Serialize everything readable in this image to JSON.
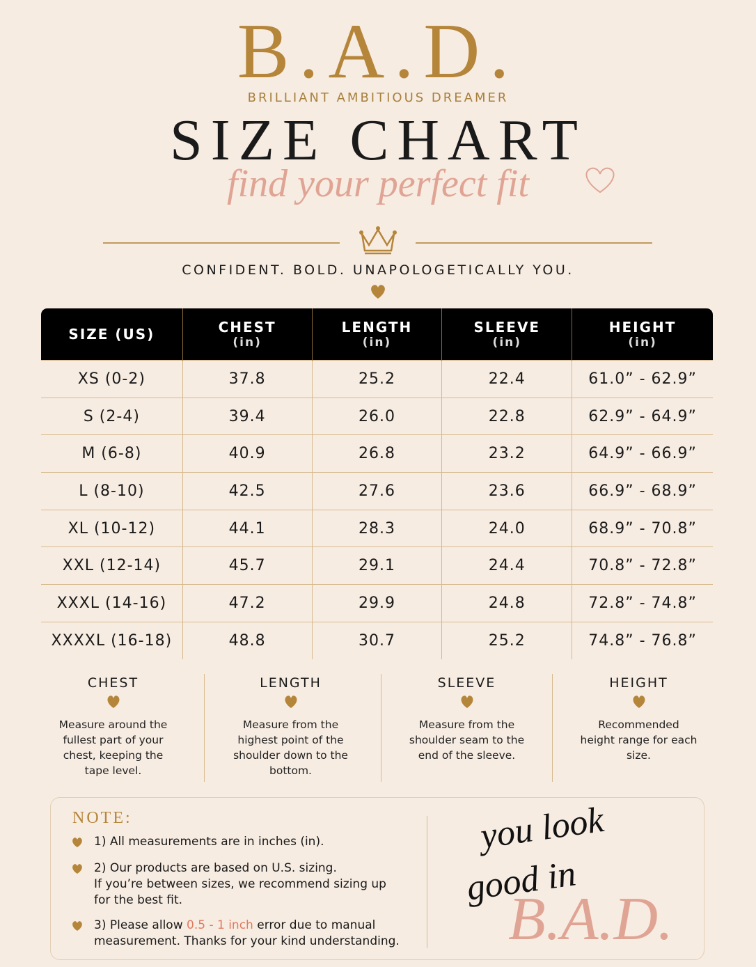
{
  "header": {
    "brand": "B.A.D.",
    "tagline": "BRILLIANT AMBITIOUS DREAMER",
    "title": "SIZE CHART",
    "script": "find your perfect fit",
    "motto": "CONFIDENT. BOLD. UNAPOLOGETICALLY YOU."
  },
  "table": {
    "columns": [
      {
        "name": "SIZE (US)"
      },
      {
        "name": "CHEST",
        "unit": "(in)"
      },
      {
        "name": "LENGTH",
        "unit": "(in)"
      },
      {
        "name": "SLEEVE",
        "unit": "(in)"
      },
      {
        "name": "HEIGHT",
        "unit": "(in)"
      }
    ],
    "rows": [
      [
        "XS (0-2)",
        "37.8",
        "25.2",
        "22.4",
        "61.0” - 62.9”"
      ],
      [
        "S (2-4)",
        "39.4",
        "26.0",
        "22.8",
        "62.9” - 64.9”"
      ],
      [
        "M (6-8)",
        "40.9",
        "26.8",
        "23.2",
        "64.9” - 66.9”"
      ],
      [
        "L (8-10)",
        "42.5",
        "27.6",
        "23.6",
        "66.9” - 68.9”"
      ],
      [
        "XL (10-12)",
        "44.1",
        "28.3",
        "24.0",
        "68.9” - 70.8”"
      ],
      [
        "XXL (12-14)",
        "45.7",
        "29.1",
        "24.4",
        "70.8” - 72.8”"
      ],
      [
        "XXXL (14-16)",
        "47.2",
        "29.9",
        "24.8",
        "72.8” - 74.8”"
      ],
      [
        "XXXXL (16-18)",
        "48.8",
        "30.7",
        "25.2",
        "74.8” - 76.8”"
      ]
    ]
  },
  "guide": [
    {
      "title": "CHEST",
      "text": "Measure around the fullest part of your chest, keeping the tape level."
    },
    {
      "title": "LENGTH",
      "text": "Measure from the highest point of the shoulder down to the bottom."
    },
    {
      "title": "SLEEVE",
      "text": "Measure from the shoulder seam to the end of the sleeve."
    },
    {
      "title": "HEIGHT",
      "text": "Recommended height range for each size."
    }
  ],
  "note": {
    "title": "NOTE:",
    "items": [
      [
        "1) All measurements are in inches (in)."
      ],
      [
        "2) Our products are based on U.S. sizing.",
        "If you’re between sizes, we recommend sizing up for the best fit."
      ],
      [
        "3) Please allow ",
        "0.5 - 1 inch",
        " error due to manual measurement. Thanks for your kind understanding."
      ]
    ]
  },
  "closing": {
    "line1": "you look",
    "line2": "good in",
    "brand": "B.A.D."
  }
}
